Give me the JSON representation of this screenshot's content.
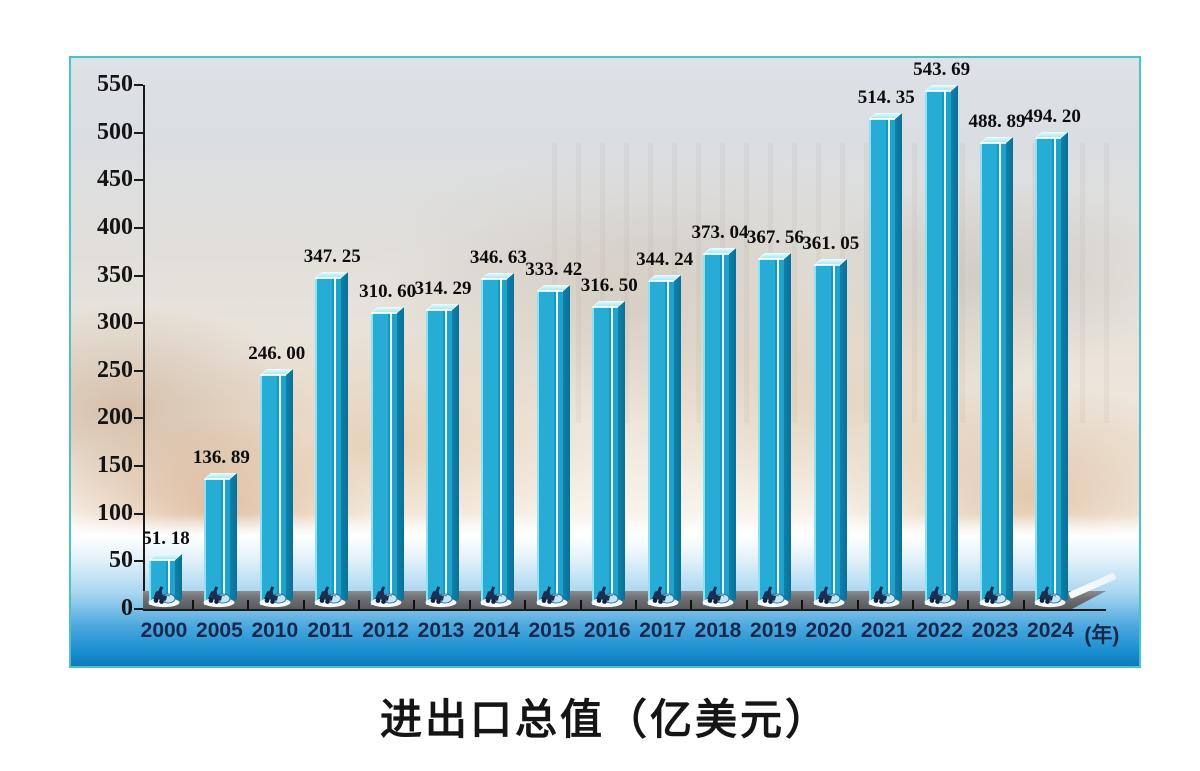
{
  "chart_data": {
    "type": "bar",
    "title": "进出口总值（亿美元）",
    "x_unit_label": "(年)",
    "xlabel": "",
    "ylabel": "",
    "categories": [
      "2000",
      "2005",
      "2010",
      "2011",
      "2012",
      "2013",
      "2014",
      "2015",
      "2016",
      "2017",
      "2018",
      "2019",
      "2020",
      "2021",
      "2022",
      "2023",
      "2024"
    ],
    "values": [
      51.18,
      136.89,
      246.0,
      347.25,
      310.6,
      314.29,
      346.63,
      333.42,
      316.5,
      344.24,
      373.04,
      367.56,
      361.05,
      514.35,
      543.69,
      488.89,
      494.2
    ],
    "value_labels": [
      "51. 18",
      "136. 89",
      "246. 00",
      "347. 25",
      "310. 60",
      "314. 29",
      "346. 63",
      "333. 42",
      "316. 50",
      "344. 24",
      "373. 04",
      "367. 56",
      "361. 05",
      "514. 35",
      "543. 69",
      "488. 89",
      "494. 20"
    ],
    "ylim": [
      0,
      550
    ],
    "yticks": [
      0,
      50,
      100,
      150,
      200,
      250,
      300,
      350,
      400,
      450,
      500,
      550
    ],
    "grid": false,
    "legend": null,
    "base_icon": "cargo-loader-icon",
    "colors": {
      "bar_front": "#27acd6",
      "bar_side": "#0e82aa",
      "bar_top": "#aee8f3",
      "floor": "#6f7073",
      "axis": "#1a1a1a",
      "year_label": "#17294b",
      "value_label": "#0c0c0c",
      "frame_border": "#4cc2c8",
      "bottom_gradient_deep": "#0d79ba"
    }
  }
}
